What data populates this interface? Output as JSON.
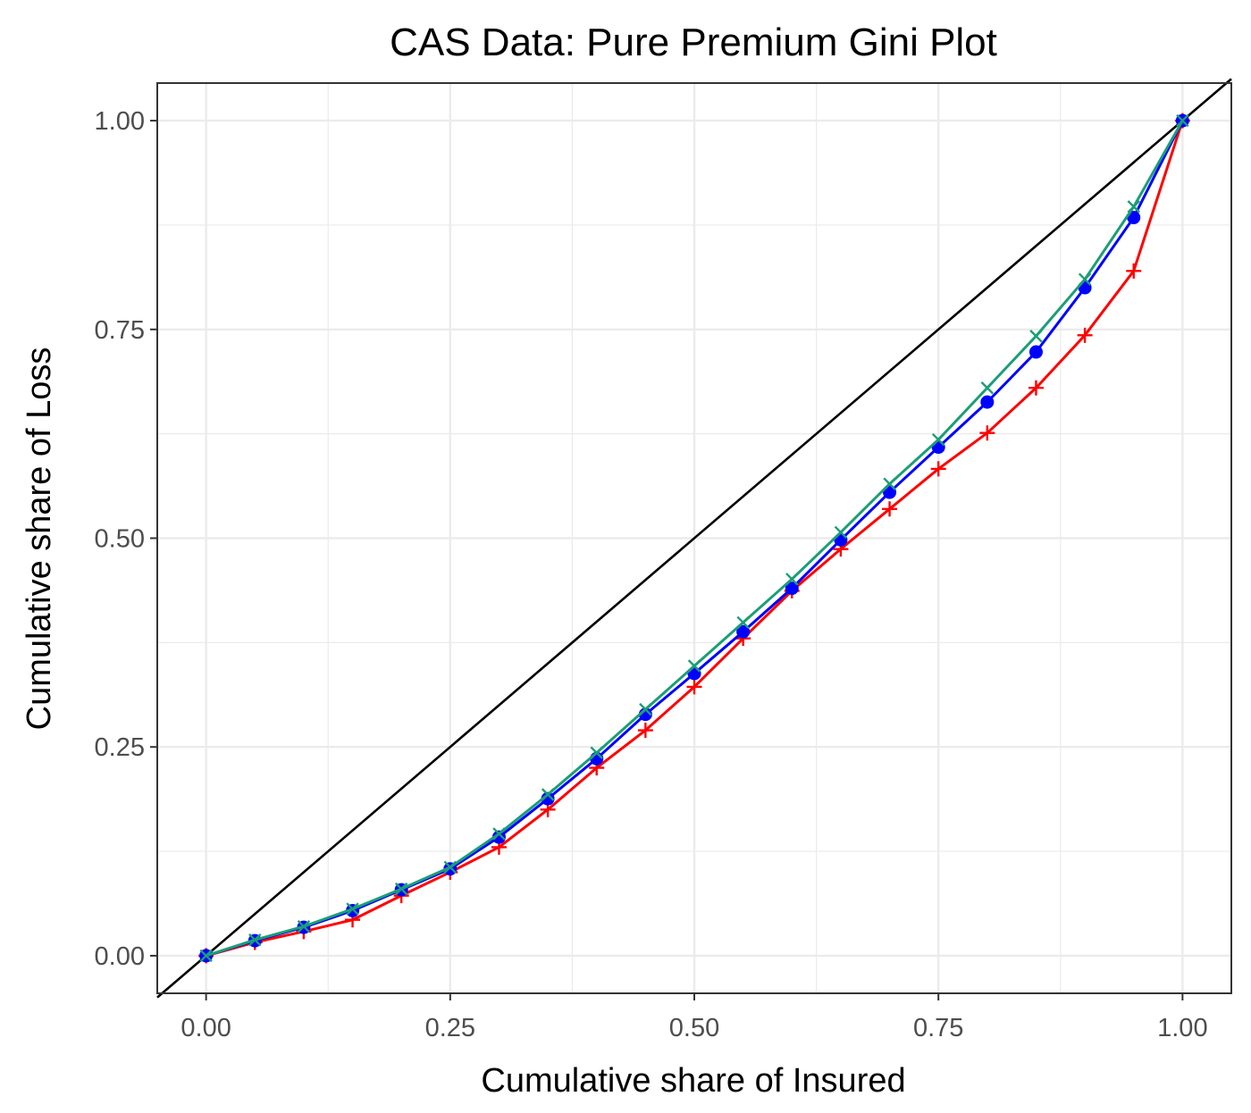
{
  "chart_data": {
    "type": "line",
    "title": "CAS Data: Pure Premium Gini Plot",
    "xlabel": "Cumulative share of Insured",
    "ylabel": "Cumulative share of Loss",
    "xlim": [
      -0.05,
      1.05
    ],
    "ylim": [
      -0.045,
      1.045
    ],
    "xticks": [
      0,
      0.25,
      0.5,
      0.75,
      1
    ],
    "yticks": [
      0,
      0.25,
      0.5,
      0.75,
      1
    ],
    "xtick_labels": [
      "0.00",
      "0.25",
      "0.50",
      "0.75",
      "1.00"
    ],
    "ytick_labels": [
      "0.00",
      "0.25",
      "0.50",
      "0.75",
      "1.00"
    ],
    "grid": true,
    "legend": "none",
    "equality_line": {
      "color": "#000000",
      "x": [
        -0.05,
        1.05
      ],
      "y": [
        -0.05,
        1.05
      ]
    },
    "x": [
      0,
      0.05,
      0.1,
      0.15,
      0.2,
      0.25,
      0.3,
      0.35,
      0.4,
      0.45,
      0.5,
      0.55,
      0.6,
      0.65,
      0.7,
      0.75,
      0.8,
      0.85,
      0.9,
      0.95,
      1
    ],
    "series": [
      {
        "color": "#ff0000",
        "marker": "plus",
        "values": [
          0,
          0.016,
          0.029,
          0.043,
          0.072,
          0.1,
          0.13,
          0.175,
          0.225,
          0.27,
          0.322,
          0.38,
          0.437,
          0.487,
          0.535,
          0.583,
          0.626,
          0.68,
          0.743,
          0.82,
          1
        ]
      },
      {
        "color": "#0000ff",
        "marker": "circle",
        "values": [
          0,
          0.018,
          0.034,
          0.054,
          0.079,
          0.104,
          0.142,
          0.188,
          0.236,
          0.289,
          0.338,
          0.388,
          0.44,
          0.498,
          0.555,
          0.609,
          0.663,
          0.723,
          0.8,
          0.884,
          1
        ]
      },
      {
        "color": "#1b9e77",
        "marker": "x",
        "values": [
          0,
          0.019,
          0.035,
          0.056,
          0.08,
          0.106,
          0.146,
          0.193,
          0.243,
          0.295,
          0.347,
          0.399,
          0.451,
          0.507,
          0.565,
          0.618,
          0.68,
          0.742,
          0.81,
          0.897,
          1
        ]
      }
    ]
  }
}
